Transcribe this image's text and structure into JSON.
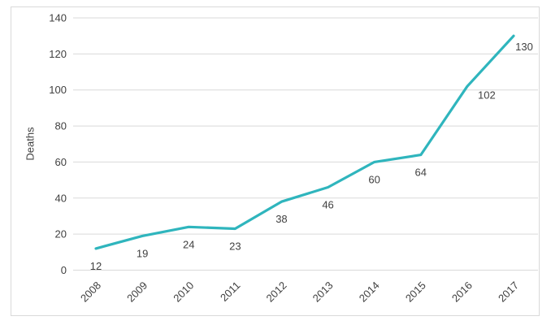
{
  "chart_data": {
    "type": "line",
    "categories": [
      "2008",
      "2009",
      "2010",
      "2011",
      "2012",
      "2013",
      "2014",
      "2015",
      "2016",
      "2017"
    ],
    "values": [
      12,
      19,
      24,
      23,
      38,
      46,
      60,
      64,
      102,
      130
    ],
    "series_name": "Deaths",
    "title": "",
    "xlabel": "",
    "ylabel": "Deaths",
    "ylim": [
      0,
      140
    ],
    "ytick_step": 20,
    "grid": true,
    "legend_position": "none",
    "data_labels": true,
    "x_label_rotation_deg": -45
  },
  "colors": {
    "line": "#2FB5BD",
    "gridline": "#D9D9D9",
    "frame_border": "#D9D9D9",
    "text": "#404040",
    "background": "#FFFFFF"
  }
}
